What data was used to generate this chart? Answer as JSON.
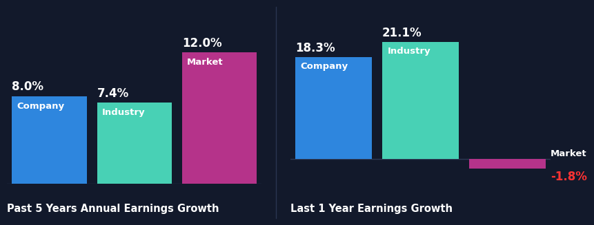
{
  "background_color": "#12192b",
  "left_chart": {
    "title": "Past 5 Years Annual Earnings Growth",
    "bars": [
      {
        "label": "Company",
        "value": 8.0,
        "color": "#2e86de"
      },
      {
        "label": "Industry",
        "value": 7.4,
        "color": "#48d1b5"
      },
      {
        "label": "Market",
        "value": 12.0,
        "color": "#b5338a"
      }
    ]
  },
  "right_chart": {
    "title": "Last 1 Year Earnings Growth",
    "bars": [
      {
        "label": "Company",
        "value": 18.3,
        "color": "#2e86de"
      },
      {
        "label": "Industry",
        "value": 21.1,
        "color": "#48d1b5"
      },
      {
        "label": "Market",
        "value": -1.8,
        "color": "#b5338a"
      }
    ]
  },
  "label_color_positive": "#ffffff",
  "label_color_negative": "#ff3333",
  "title_color": "#ffffff",
  "inner_label_color": "#ffffff",
  "baseline_color": "#2e3a55",
  "title_fontsize": 10.5,
  "value_fontsize": 12,
  "bar_label_fontsize": 9.5,
  "divider_color": "#2a3550"
}
